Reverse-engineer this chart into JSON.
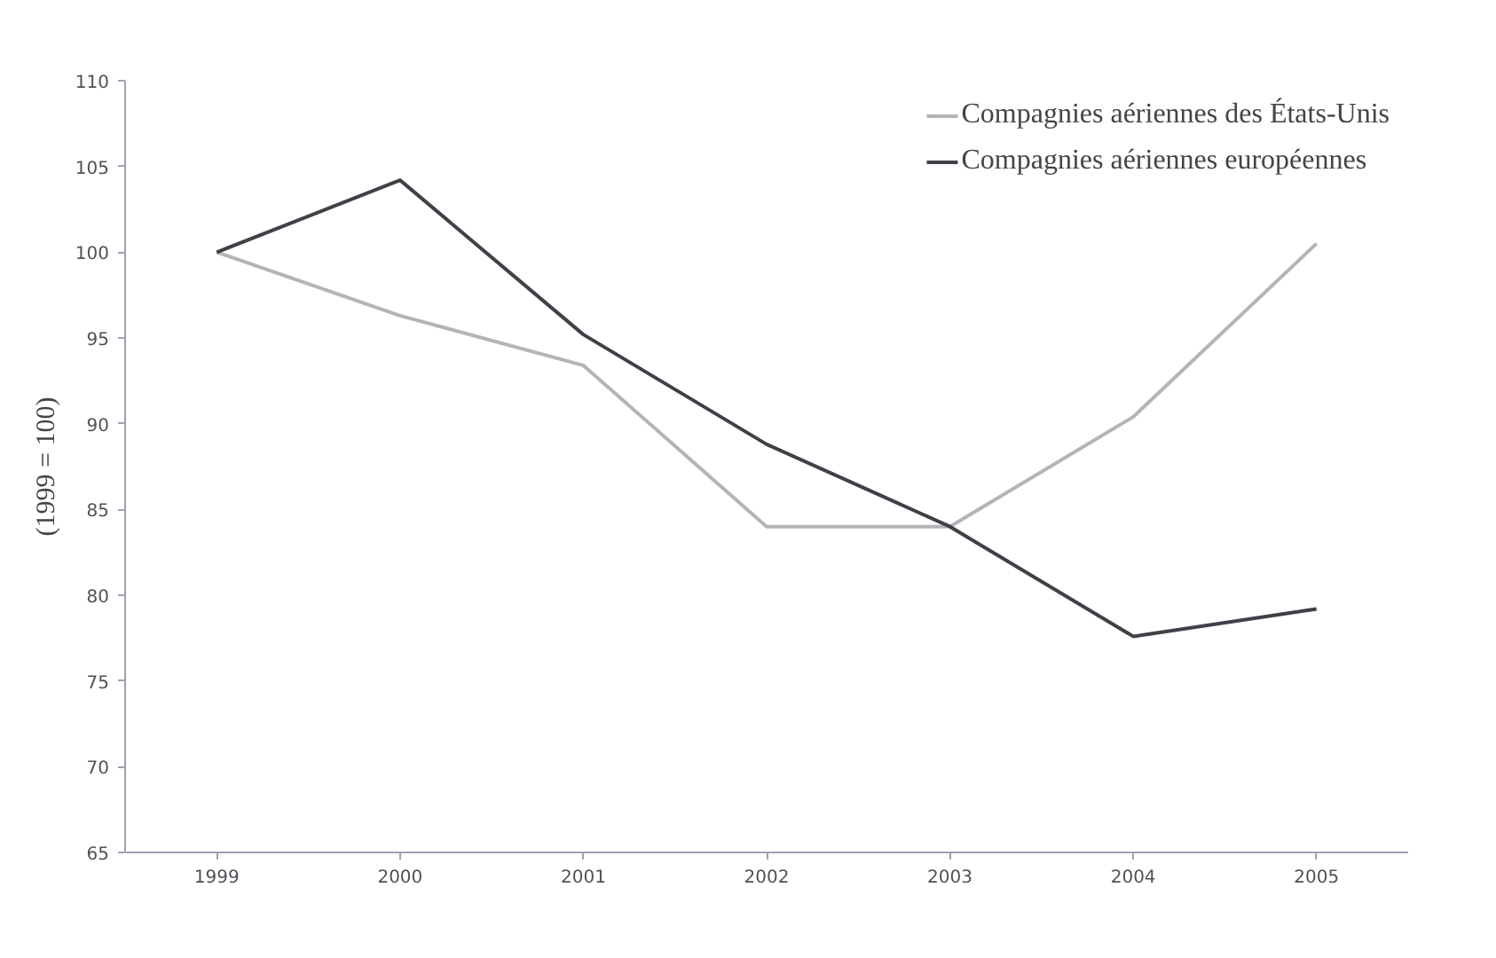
{
  "chart_data": {
    "type": "line",
    "ylabel": "(1999 = 100)",
    "categories": [
      "1999",
      "2000",
      "2001",
      "2002",
      "2003",
      "2004",
      "2005"
    ],
    "series": [
      {
        "name": "Compagnies aériennes des États-Unis",
        "color": "#b4b4b8",
        "values": [
          100,
          96.3,
          93.4,
          84,
          84,
          90.4,
          100.5
        ]
      },
      {
        "name": "Compagnies aériennes européennes",
        "color": "#404048",
        "values": [
          100,
          104.2,
          95.2,
          88.8,
          84,
          77.6,
          79.2
        ]
      }
    ],
    "ylim": [
      65,
      110
    ],
    "yticks": [
      65,
      70,
      75,
      80,
      85,
      90,
      95,
      100,
      105,
      110
    ],
    "grid": false,
    "legend": "top right",
    "marker": "none",
    "line_style": "solid"
  }
}
